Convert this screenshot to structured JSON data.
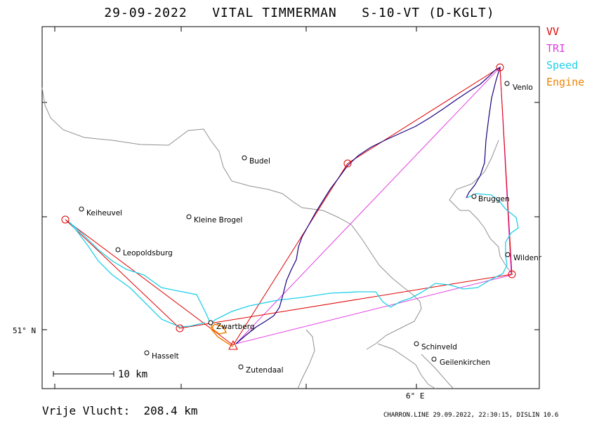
{
  "title": "29-09-2022   VITAL TIMMERMAN   S-10-VT (D-KGLT)",
  "legend": [
    {
      "label": "VV",
      "color": "#e00000"
    },
    {
      "label": "TRI",
      "color": "#e040e0"
    },
    {
      "label": "Speed",
      "color": "#20d0e8"
    },
    {
      "label": "Engine",
      "color": "#f08000"
    }
  ],
  "places": {
    "venlo": "Venlo",
    "budel": "Budel",
    "keiheuvel": "Keiheuvel",
    "kleine_brogel": "Kleine Brogel",
    "brueggen": "Bruggen",
    "leopoldsburg": "Leopoldsburg",
    "wildenrath": "Wildenr",
    "zwartberg": "Zwartberg",
    "hasselt": "Hasselt",
    "zutendaal": "Zutendaal",
    "schinveld": "Schinveld",
    "geilenkirchen": "Geilenkirchen"
  },
  "axis": {
    "lat_label": "51° N",
    "lon_label": "6° E"
  },
  "scale_label": "10 km",
  "footer": {
    "distance": "Vrije Vlucht:  208.4 km",
    "credit": "CHARRON.LINE 29.09.2022, 22:30:15, DISLIN 10.6"
  },
  "colors": {
    "frame": "#000000",
    "border": "#909090",
    "track": "#1a0080",
    "vv": "#e00000",
    "tri": "#e040e0",
    "speed": "#20d0e8",
    "engine": "#f08000"
  }
}
